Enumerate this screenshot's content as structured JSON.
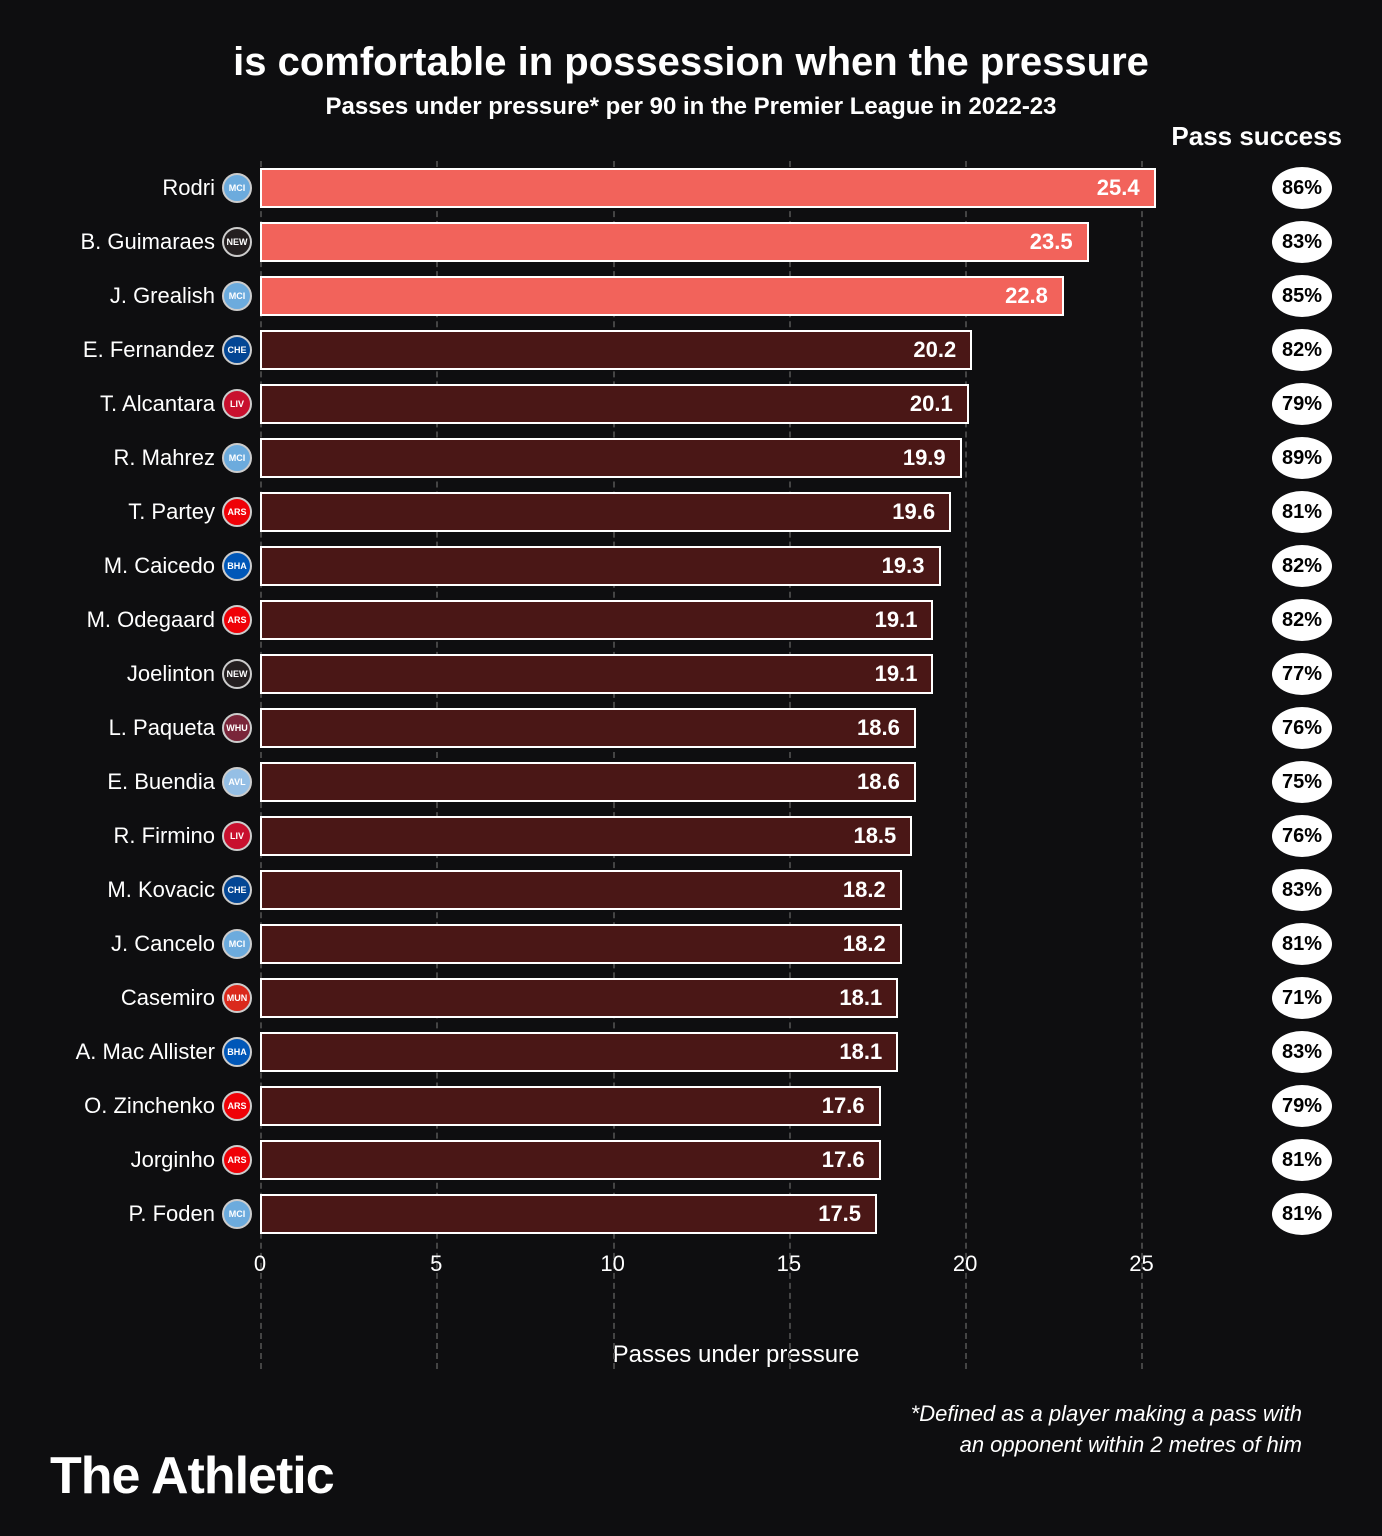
{
  "title": "is comfortable in possession when the pressure",
  "subtitle": "Passes under pressure* per 90 in the Premier League in 2022-23",
  "pass_success_header": "Pass success",
  "x_axis_label": "Passes under pressure",
  "footnote_line1": "*Defined as a player making a pass with",
  "footnote_line2": "an opponent within 2 metres of him",
  "brand": "The Athletic",
  "chart": {
    "type": "bar",
    "xlim": [
      0,
      27
    ],
    "xticks": [
      0,
      5,
      10,
      15,
      20,
      25
    ],
    "background": "#0e0e10",
    "grid_color": "#444444",
    "bar_border_color": "#ffffff",
    "highlight_color": "#f2635b",
    "normal_color": "#4a1716",
    "pill_bg": "#ffffff",
    "pill_text": "#000000",
    "text_color": "#ffffff",
    "title_fontsize": 40,
    "subtitle_fontsize": 24,
    "label_fontsize": 22,
    "rows": [
      {
        "player": "Rodri",
        "club": "MCI",
        "club_bg": "#6cabdd",
        "value": 25.4,
        "success": "86%",
        "highlight": true
      },
      {
        "player": "B. Guimaraes",
        "club": "NEW",
        "club_bg": "#241f20",
        "value": 23.5,
        "success": "83%",
        "highlight": true
      },
      {
        "player": "J. Grealish",
        "club": "MCI",
        "club_bg": "#6cabdd",
        "value": 22.8,
        "success": "85%",
        "highlight": true
      },
      {
        "player": "E. Fernandez",
        "club": "CHE",
        "club_bg": "#034694",
        "value": 20.2,
        "success": "82%",
        "highlight": false
      },
      {
        "player": "T. Alcantara",
        "club": "LIV",
        "club_bg": "#c8102e",
        "value": 20.1,
        "success": "79%",
        "highlight": false
      },
      {
        "player": "R. Mahrez",
        "club": "MCI",
        "club_bg": "#6cabdd",
        "value": 19.9,
        "success": "89%",
        "highlight": false
      },
      {
        "player": "T. Partey",
        "club": "ARS",
        "club_bg": "#ef0107",
        "value": 19.6,
        "success": "81%",
        "highlight": false
      },
      {
        "player": "M. Caicedo",
        "club": "BHA",
        "club_bg": "#0057b8",
        "value": 19.3,
        "success": "82%",
        "highlight": false
      },
      {
        "player": "M. Odegaard",
        "club": "ARS",
        "club_bg": "#ef0107",
        "value": 19.1,
        "success": "82%",
        "highlight": false
      },
      {
        "player": "Joelinton",
        "club": "NEW",
        "club_bg": "#241f20",
        "value": 19.1,
        "success": "77%",
        "highlight": false
      },
      {
        "player": "L. Paqueta",
        "club": "WHU",
        "club_bg": "#7a263a",
        "value": 18.6,
        "success": "76%",
        "highlight": false
      },
      {
        "player": "E. Buendia",
        "club": "AVL",
        "club_bg": "#95bfe5",
        "value": 18.6,
        "success": "75%",
        "highlight": false
      },
      {
        "player": "R. Firmino",
        "club": "LIV",
        "club_bg": "#c8102e",
        "value": 18.5,
        "success": "76%",
        "highlight": false
      },
      {
        "player": "M. Kovacic",
        "club": "CHE",
        "club_bg": "#034694",
        "value": 18.2,
        "success": "83%",
        "highlight": false
      },
      {
        "player": "J. Cancelo",
        "club": "MCI",
        "club_bg": "#6cabdd",
        "value": 18.2,
        "success": "81%",
        "highlight": false
      },
      {
        "player": "Casemiro",
        "club": "MUN",
        "club_bg": "#da291c",
        "value": 18.1,
        "success": "71%",
        "highlight": false
      },
      {
        "player": "A. Mac Allister",
        "club": "BHA",
        "club_bg": "#0057b8",
        "value": 18.1,
        "success": "83%",
        "highlight": false
      },
      {
        "player": "O. Zinchenko",
        "club": "ARS",
        "club_bg": "#ef0107",
        "value": 17.6,
        "success": "79%",
        "highlight": false
      },
      {
        "player": "Jorginho",
        "club": "ARS",
        "club_bg": "#ef0107",
        "value": 17.6,
        "success": "81%",
        "highlight": false
      },
      {
        "player": "P. Foden",
        "club": "MCI",
        "club_bg": "#6cabdd",
        "value": 17.5,
        "success": "81%",
        "highlight": false
      }
    ]
  }
}
